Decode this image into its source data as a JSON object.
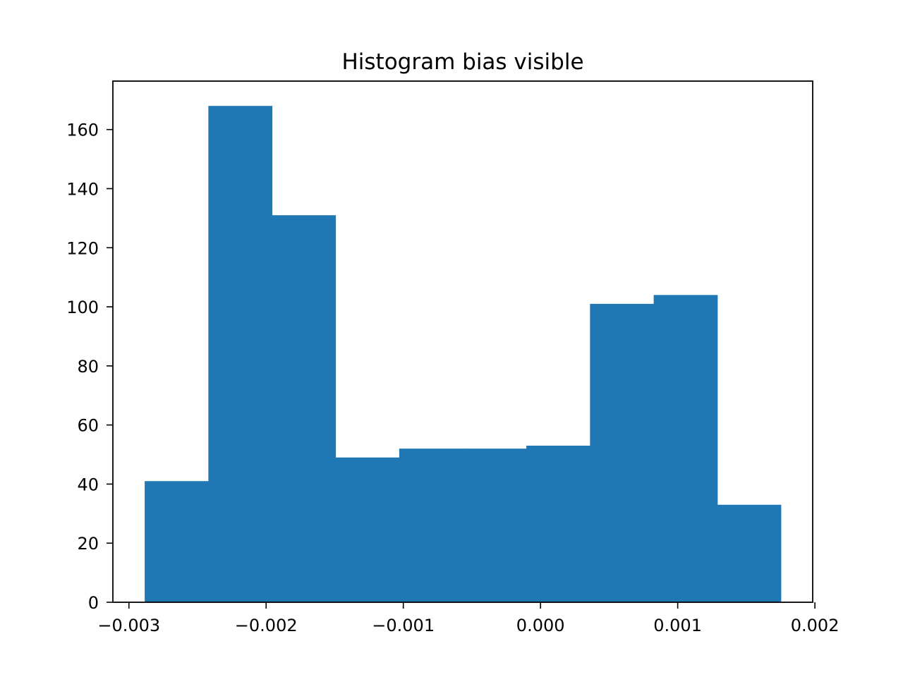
{
  "chart_data": {
    "type": "bar",
    "title": "Histogram bias visible",
    "xlabel": "",
    "ylabel": "",
    "bin_edges": [
      -0.002885,
      -0.002421,
      -0.001957,
      -0.001494,
      -0.00103,
      -0.000566,
      -0.000103,
      0.000361,
      0.000825,
      0.001289,
      0.001752
    ],
    "values": [
      41,
      168,
      131,
      49,
      52,
      52,
      53,
      101,
      104,
      33
    ],
    "bar_color": "#1f77b4",
    "xlim": [
      -0.003117,
      0.001984
    ],
    "ylim": [
      0,
      176.4
    ],
    "x_ticks": [
      -0.003,
      -0.002,
      -0.001,
      0.0,
      0.001,
      0.002
    ],
    "x_tick_labels": [
      "−0.003",
      "−0.002",
      "−0.001",
      "0.000",
      "0.001",
      "0.002"
    ],
    "y_ticks": [
      0,
      20,
      40,
      60,
      80,
      100,
      120,
      140,
      160
    ],
    "y_tick_labels": [
      "0",
      "20",
      "40",
      "60",
      "80",
      "100",
      "120",
      "140",
      "160"
    ],
    "grid": false,
    "legend": "none"
  }
}
